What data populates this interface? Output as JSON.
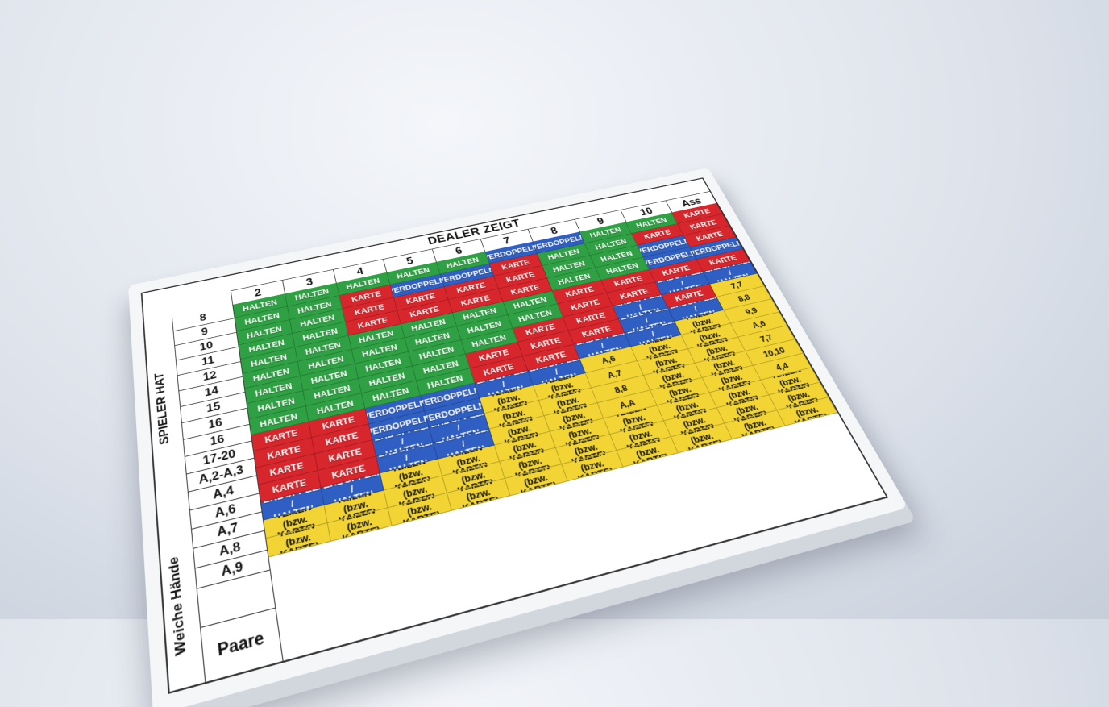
{
  "chart": {
    "dealer_title": "DEALER ZEIGT",
    "player_title": "SPIELER HAT",
    "soft_title": "Weiche Hände",
    "pairs_title": "Paare",
    "dealer_columns": [
      "2",
      "3",
      "4",
      "5",
      "6",
      "7",
      "8",
      "9",
      "10",
      "Ass"
    ],
    "player_rows": [
      "8",
      "9",
      "10",
      "11",
      "12",
      "14",
      "15",
      "16",
      "16",
      "17-20",
      "A,2-A,3",
      "A,4",
      "A,6",
      "A,7",
      "A,8",
      "A,9"
    ],
    "pair_labels": [
      "7,7",
      "8,8",
      "9,9",
      "A,6",
      "A,6",
      "A,7",
      "7,7",
      "8,8",
      "10,10",
      "A,A",
      "4,4"
    ],
    "actions": {
      "hit": "KARTE",
      "stand": "HALTEN",
      "double": "VERDOPPELN",
      "double_stand": "VERDOPPELN /\nHALTEN",
      "split": "TEILEN\n(bzw. KARTE)"
    },
    "colors": {
      "stand": "#2fa043",
      "hit": "#d7262c",
      "double": "#2f5fc2",
      "split": "#f2d534"
    }
  }
}
